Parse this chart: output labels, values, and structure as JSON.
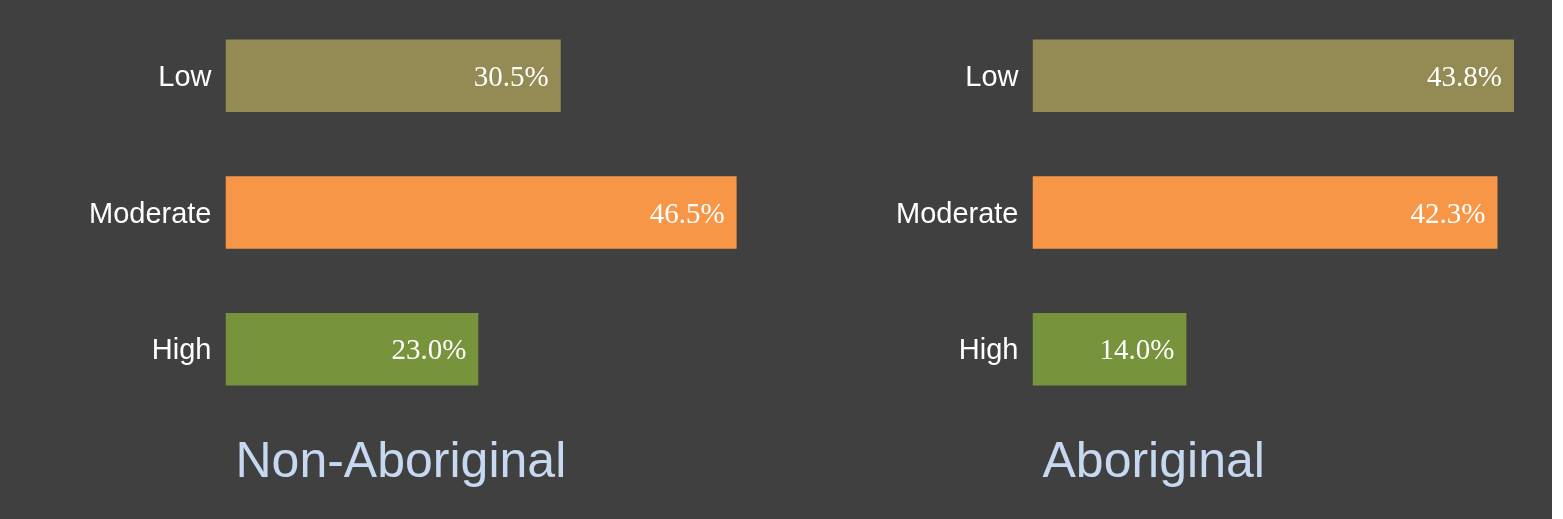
{
  "chart_data": [
    {
      "type": "bar",
      "orientation": "horizontal",
      "title": "Non-Aboriginal",
      "categories": [
        "Low",
        "Moderate",
        "High"
      ],
      "values": [
        30.5,
        46.5,
        23.0
      ],
      "colors": [
        "#948a54",
        "#f79646",
        "#77933c"
      ],
      "data_labels": true,
      "value_labels": [
        "30.5%",
        "46.5%",
        "23.0%"
      ]
    },
    {
      "type": "bar",
      "orientation": "horizontal",
      "title": "Aboriginal",
      "categories": [
        "Low",
        "Moderate",
        "High"
      ],
      "values": [
        43.8,
        42.3,
        14.0
      ],
      "colors": [
        "#948a54",
        "#f79646",
        "#77933c"
      ],
      "data_labels": true,
      "value_labels": [
        "43.8%",
        "42.3%",
        "14.0%"
      ]
    }
  ]
}
